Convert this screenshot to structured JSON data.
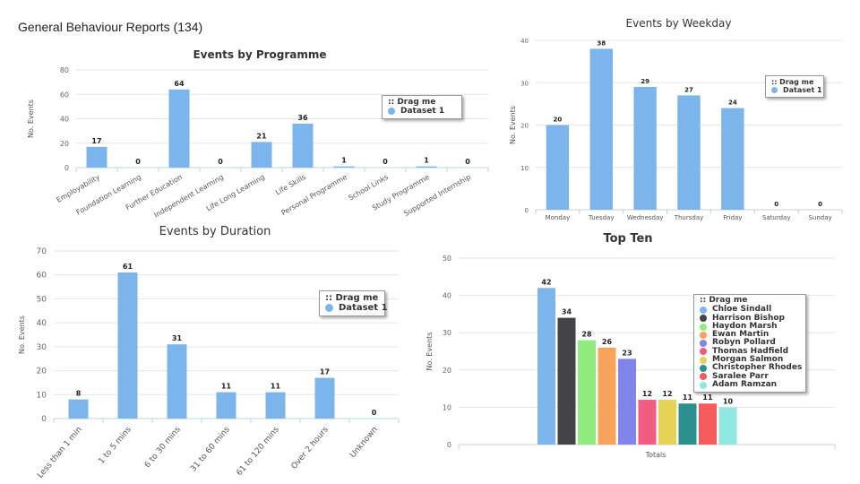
{
  "page": {
    "title": "General Behaviour Reports (134)"
  },
  "legend": {
    "drag_label": ":: Drag me",
    "dataset_label": "Dataset 1"
  },
  "colors": {
    "bar": "#7cb5ec",
    "grid": "#e6e6e6",
    "axis": "#c0d0e0",
    "text": "#333333"
  },
  "chart_data": [
    {
      "id": "programme",
      "type": "bar",
      "title": "Events by Programme",
      "ylabel": "No. Events",
      "xlabel": "",
      "ylim": [
        0,
        80
      ],
      "yticks": [
        0,
        20,
        40,
        60,
        80
      ],
      "categories": [
        "Employability",
        "Foundation Learning",
        "Further Education",
        "Independent Learning",
        "Life Long Learning",
        "Life Skills",
        "Personal Programme",
        "School Links",
        "Study Programme",
        "Supported Internship"
      ],
      "series": [
        {
          "name": "Dataset 1",
          "values": [
            17,
            0,
            64,
            0,
            21,
            36,
            1,
            0,
            1,
            0
          ]
        }
      ]
    },
    {
      "id": "weekday",
      "type": "bar",
      "title": "Events by Weekday",
      "ylabel": "No. Events",
      "xlabel": "",
      "ylim": [
        0,
        40
      ],
      "yticks": [
        0,
        10,
        20,
        30,
        40
      ],
      "categories": [
        "Monday",
        "Tuesday",
        "Wednesday",
        "Thursday",
        "Friday",
        "Saturday",
        "Sunday"
      ],
      "series": [
        {
          "name": "Dataset 1",
          "values": [
            20,
            38,
            29,
            27,
            24,
            0,
            0
          ]
        }
      ]
    },
    {
      "id": "duration",
      "type": "bar",
      "title": "Events by Duration",
      "ylabel": "No. Events",
      "xlabel": "",
      "ylim": [
        0,
        70
      ],
      "yticks": [
        0,
        10,
        20,
        30,
        40,
        50,
        60,
        70
      ],
      "categories": [
        "Less than 1 min",
        "1 to 5 mins",
        "6 to 30 mins",
        "31 to 60 mins",
        "61 to 120 mins",
        "Over 2 hours",
        "Unknown"
      ],
      "series": [
        {
          "name": "Dataset 1",
          "values": [
            8,
            61,
            31,
            11,
            11,
            17,
            0
          ]
        }
      ]
    },
    {
      "id": "topten",
      "type": "bar",
      "title": "Top Ten",
      "ylabel": "No. Events",
      "xlabel": "Totals",
      "ylim": [
        0,
        50
      ],
      "yticks": [
        0,
        10,
        20,
        30,
        40,
        50
      ],
      "categories": [
        "Totals"
      ],
      "series": [
        {
          "name": "Chloe Sindall",
          "values": [
            42
          ],
          "color": "#7cb5ec"
        },
        {
          "name": "Harrison Bishop",
          "values": [
            34
          ],
          "color": "#434348"
        },
        {
          "name": "Haydon Marsh",
          "values": [
            28
          ],
          "color": "#90ed7d"
        },
        {
          "name": "Ewan Martin",
          "values": [
            26
          ],
          "color": "#f7a35c"
        },
        {
          "name": "Robyn Pollard",
          "values": [
            23
          ],
          "color": "#8085e9"
        },
        {
          "name": "Thomas Hadfield",
          "values": [
            12
          ],
          "color": "#f15c80"
        },
        {
          "name": "Morgan Salmon",
          "values": [
            12
          ],
          "color": "#e4d354"
        },
        {
          "name": "Christopher Rhodes",
          "values": [
            11
          ],
          "color": "#2b908f"
        },
        {
          "name": "Saralee Parr",
          "values": [
            11
          ],
          "color": "#f45b5b"
        },
        {
          "name": "Adam Ramzan",
          "values": [
            10
          ],
          "color": "#91e8e1"
        }
      ]
    }
  ]
}
